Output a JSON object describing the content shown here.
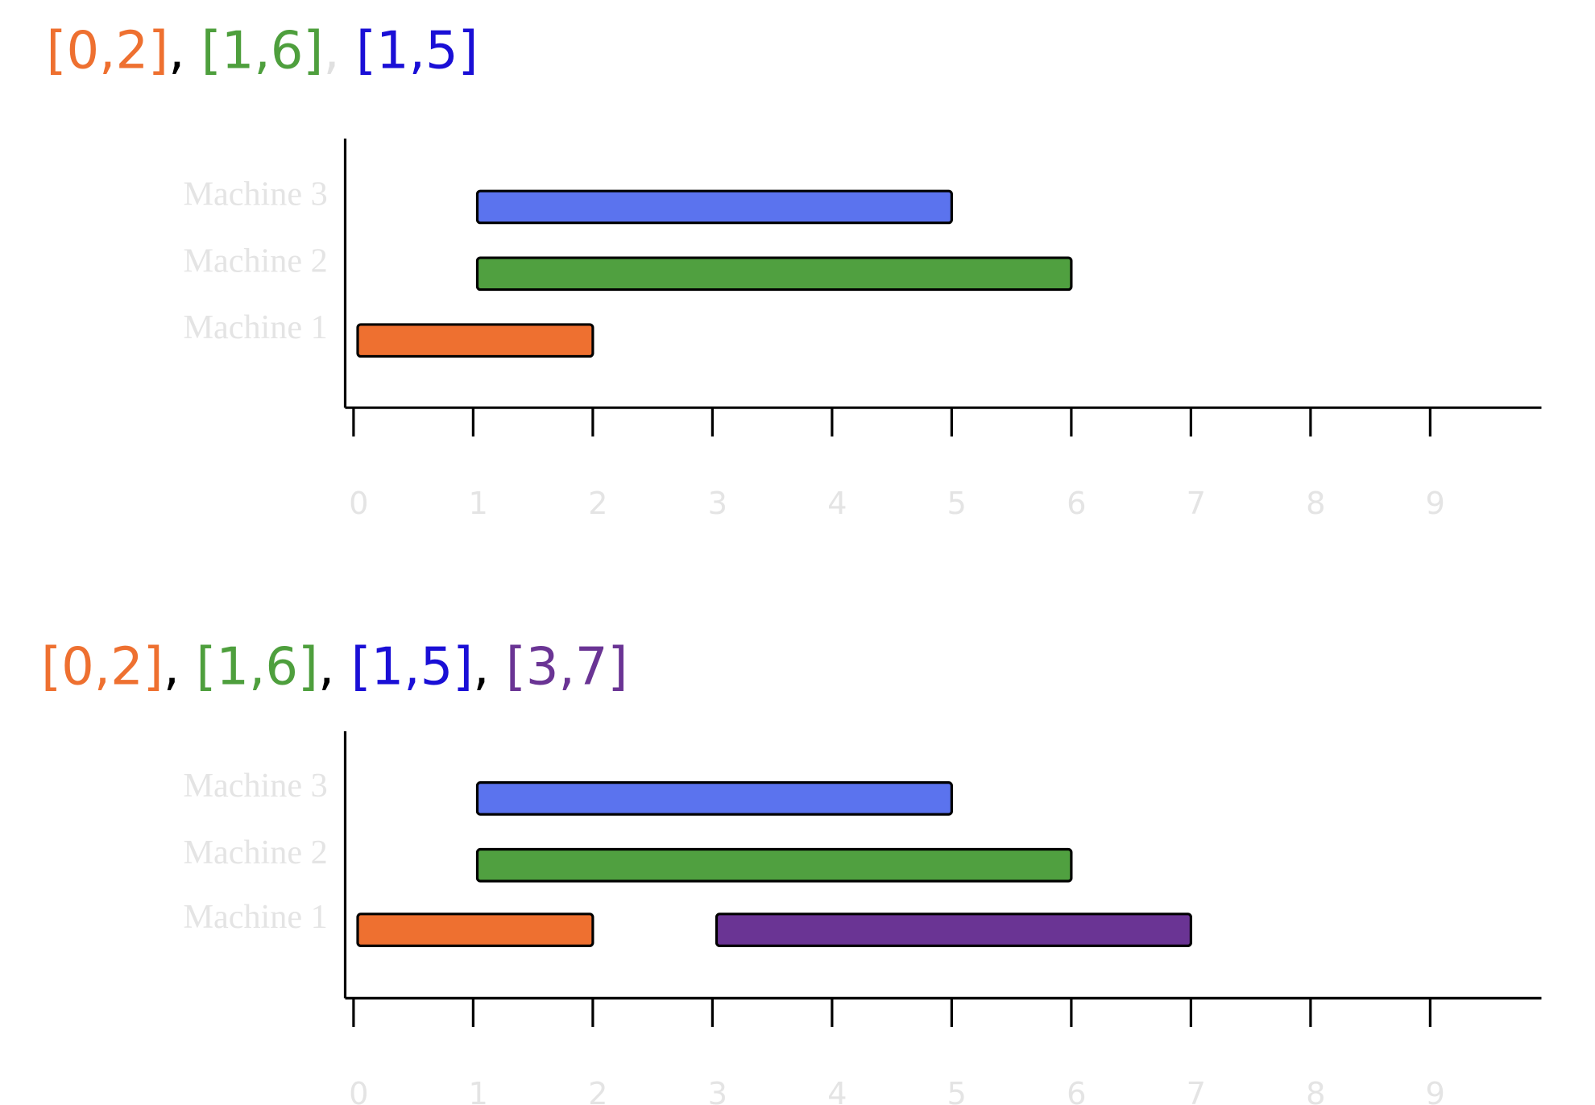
{
  "chart_data": [
    {
      "type": "gantt",
      "title": [
        {
          "text": "[0,2]",
          "color": "#ee7030"
        },
        {
          "text": ",",
          "color": "#000000"
        },
        {
          "text": "[1,6]",
          "color": "#4e9f3d"
        },
        {
          "text": ",",
          "color": "#e0e0e0"
        },
        {
          "text": "[1,5]",
          "color": "#1a0fd6"
        }
      ],
      "categories": [
        "Machine 1",
        "Machine 2",
        "Machine 3"
      ],
      "tasks": [
        {
          "machine": "Machine 1",
          "start": 0,
          "end": 2,
          "color": "#ee7030"
        },
        {
          "machine": "Machine 2",
          "start": 1,
          "end": 6,
          "color": "#50a040"
        },
        {
          "machine": "Machine 3",
          "start": 1,
          "end": 5,
          "color": "#5b73ee"
        }
      ],
      "xlim": [
        -0.07,
        9.93
      ],
      "xticks": [
        0,
        1,
        2,
        3,
        4,
        5,
        6,
        7,
        8,
        9
      ]
    },
    {
      "type": "gantt",
      "title": [
        {
          "text": "[0,2]",
          "color": "#ee7030"
        },
        {
          "text": ",",
          "color": "#000000"
        },
        {
          "text": "[1,6]",
          "color": "#4e9f3d"
        },
        {
          "text": ",",
          "color": "#000000"
        },
        {
          "text": "[1,5]",
          "color": "#1a0fd6"
        },
        {
          "text": ",",
          "color": "#000000"
        },
        {
          "text": "[3,7]",
          "color": "#6a3494"
        }
      ],
      "categories": [
        "Machine 1",
        "Machine 2",
        "Machine 3"
      ],
      "tasks": [
        {
          "machine": "Machine 1",
          "start": 0,
          "end": 2,
          "color": "#ee7030"
        },
        {
          "machine": "Machine 2",
          "start": 1,
          "end": 6,
          "color": "#50a040"
        },
        {
          "machine": "Machine 3",
          "start": 1,
          "end": 5,
          "color": "#5b73ee"
        },
        {
          "machine": "Machine 1",
          "start": 3,
          "end": 7,
          "color": "#6a3494"
        }
      ],
      "xlim": [
        -0.07,
        9.93
      ],
      "xticks": [
        0,
        1,
        2,
        3,
        4,
        5,
        6,
        7,
        8,
        9
      ]
    }
  ]
}
